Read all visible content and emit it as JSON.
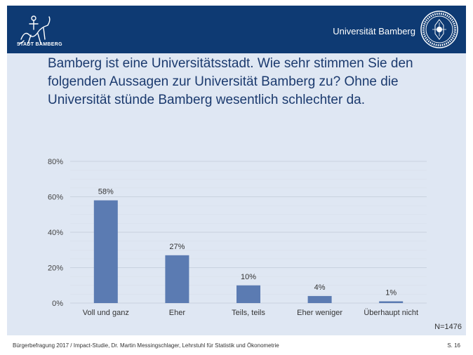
{
  "header": {
    "city_logo_text": "STADT BAMBERG",
    "university_name": "Universität Bamberg"
  },
  "title": "Bamberg ist eine Universitätsstadt. Wie sehr stimmen Sie den folgenden Aussagen zur Universität Bamberg zu? Ohne die Universität stünde Bamberg wesentlich schlechter da.",
  "chart_data": {
    "type": "bar",
    "title": "Bamberg ist eine Universitätsstadt. Wie sehr stimmen Sie den folgenden Aussagen zur Universität Bamberg zu? Ohne die Universität stünde Bamberg wesentlich schlechter da.",
    "categories": [
      "Voll und ganz",
      "Eher",
      "Teils, teils",
      "Eher weniger",
      "Überhaupt nicht"
    ],
    "values": [
      58,
      27,
      10,
      4,
      1
    ],
    "data_labels": [
      "58%",
      "27%",
      "10%",
      "4%",
      "1%"
    ],
    "ylim": [
      0,
      80
    ],
    "yticks": [
      "0%",
      "20%",
      "40%",
      "60%",
      "80%"
    ],
    "grid": true,
    "bar_color": "#5b7bb2"
  },
  "note": "N=1476",
  "footer": {
    "text": "Bürgerbefragung 2017 / Impact-Studie, Dr. Martin Messingschlager, Lehrstuhl für Statistik und Ökonometrie",
    "page": "S. 16"
  },
  "colors": {
    "header_bg": "#0e3a73",
    "slide_bg": "#dfe7f3",
    "title_text": "#1b3a6e"
  }
}
